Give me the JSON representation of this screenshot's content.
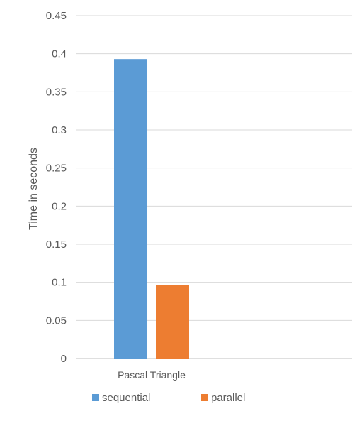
{
  "chart_data": {
    "type": "bar",
    "categories": [
      "Pascal Triangle"
    ],
    "series": [
      {
        "name": "sequential",
        "values": [
          0.393
        ],
        "color": "#5b9bd5"
      },
      {
        "name": "parallel",
        "values": [
          0.096
        ],
        "color": "#ed7d31"
      }
    ],
    "ylabel": "Time in seconds",
    "xlabel": "",
    "ylim": [
      0,
      0.45
    ],
    "yticks": [
      0,
      0.05,
      0.1,
      0.15,
      0.2,
      0.25,
      0.3,
      0.35,
      0.4,
      0.45
    ],
    "ytick_labels": [
      "0",
      "0.05",
      "0.1",
      "0.15",
      "0.2",
      "0.25",
      "0.3",
      "0.35",
      "0.4",
      "0.45"
    ],
    "grid": true,
    "legend": "bottom"
  }
}
